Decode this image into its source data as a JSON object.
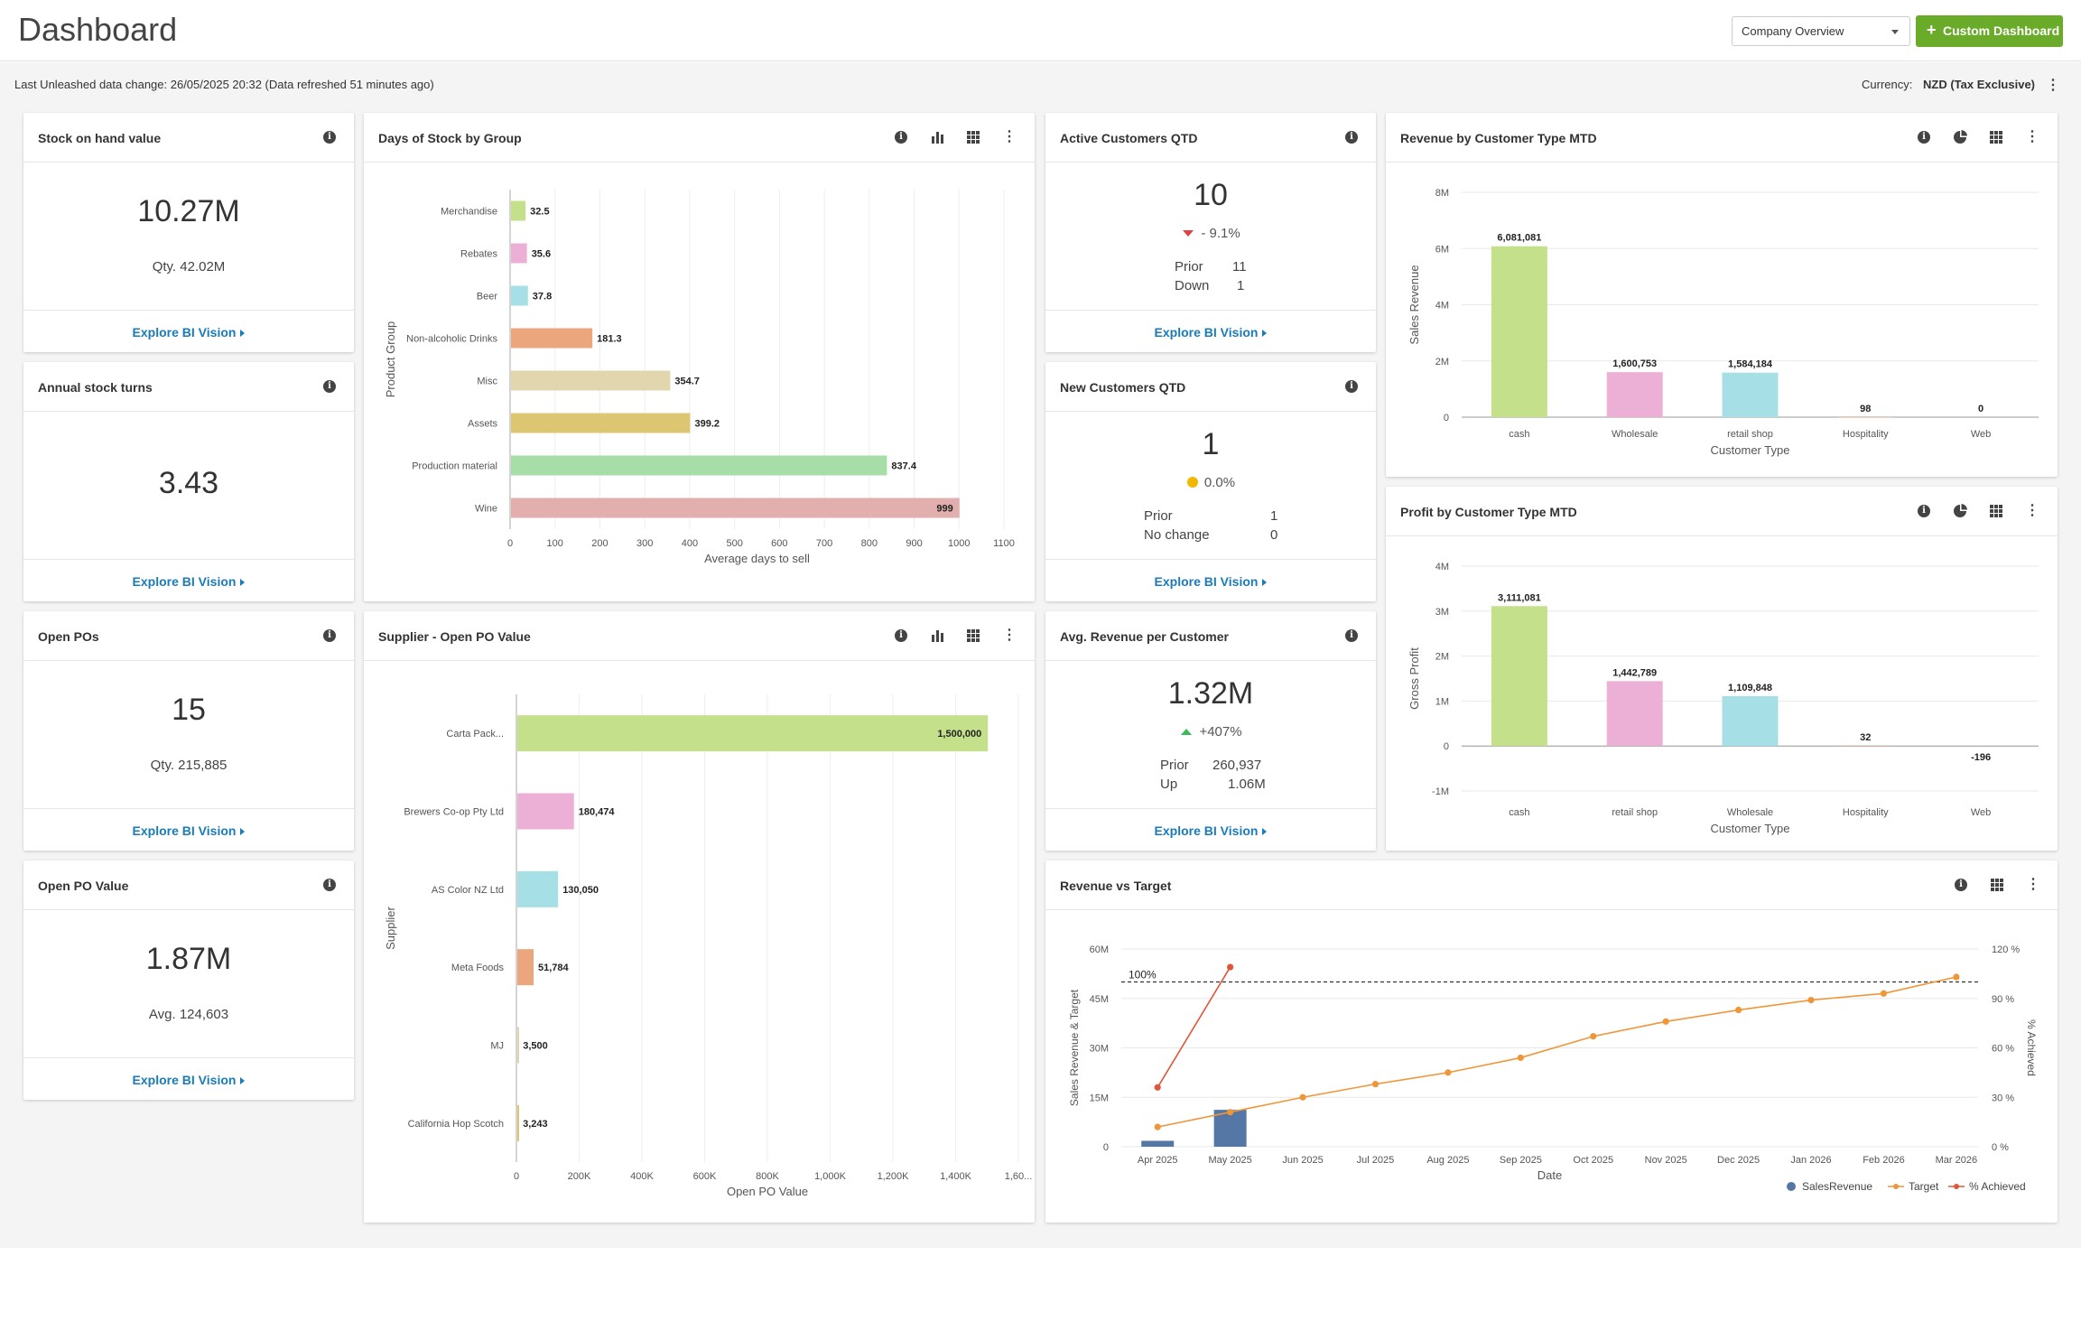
{
  "header": {
    "title": "Dashboard",
    "dashboard_select": "Company Overview",
    "custom_button": "Custom Dashboard",
    "plus": "+"
  },
  "infobar": {
    "last_change": "Last Unleashed data change: 26/05/2025 20:32 (Data refreshed 51 minutes ago)",
    "currency_label": "Currency:",
    "currency_value": "NZD (Tax Exclusive)"
  },
  "explore_label": "Explore BI Vision",
  "cards": {
    "stock_on_hand": {
      "title": "Stock on hand value",
      "value": "10.27M",
      "sub": "Qty. 42.02M"
    },
    "stock_turns": {
      "title": "Annual stock turns",
      "value": "3.43"
    },
    "open_pos": {
      "title": "Open POs",
      "value": "15",
      "sub": "Qty. 215,885"
    },
    "open_po_value": {
      "title": "Open PO Value",
      "value": "1.87M",
      "sub": "Avg. 124,603"
    },
    "active_customers": {
      "title": "Active Customers QTD",
      "value": "10",
      "delta": "- 9.1%",
      "prior_label": "Prior",
      "prior_value": "11",
      "change_label": "Down",
      "change_value": "1"
    },
    "new_customers": {
      "title": "New Customers QTD",
      "value": "1",
      "delta": "0.0%",
      "prior_label": "Prior",
      "prior_value": "1",
      "change_label": "No change",
      "change_value": "0"
    },
    "avg_revenue": {
      "title": "Avg. Revenue per Customer",
      "value": "1.32M",
      "delta": "+407%",
      "prior_label": "Prior",
      "prior_value": "260,937",
      "change_label": "Up",
      "change_value": "1.06M"
    }
  },
  "colors": {
    "green": "#c5e08a",
    "pink": "#ecb0d6",
    "cyan": "#a6dfe6",
    "orange": "#eca67e",
    "tan": "#e1d6ad",
    "gold": "#dcc672",
    "mint": "#a7dea8",
    "rose": "#e3aeae",
    "navy": "#5577a6",
    "target": "#f0963a",
    "achieved": "#e0563a",
    "down": "#e04040",
    "up": "#3cb85a",
    "neutral": "#f0b800"
  },
  "chart_data": [
    {
      "id": "days_of_stock",
      "title": "Days of Stock by Group",
      "type": "bar",
      "orientation": "horizontal",
      "categories": [
        "Merchandise",
        "Rebates",
        "Beer",
        "Non-alcoholic Drinks",
        "Misc",
        "Assets",
        "Production material",
        "Wine"
      ],
      "values": [
        32.5,
        35.6,
        37.8,
        181.3,
        354.7,
        399.2,
        837.4,
        999
      ],
      "labels": [
        "32.5",
        "35.6",
        "37.8",
        "181.3",
        "354.7",
        "399.2",
        "837.4",
        "999"
      ],
      "xlabel": "Average days to sell",
      "ylabel": "Product Group",
      "xlim": [
        0,
        1100
      ],
      "ticks": [
        "0",
        "100",
        "200",
        "300",
        "400",
        "500",
        "600",
        "700",
        "800",
        "900",
        "1000",
        "1100"
      ]
    },
    {
      "id": "supplier_po",
      "title": "Supplier - Open PO Value",
      "type": "bar",
      "orientation": "horizontal",
      "categories": [
        "Carta Pack...",
        "Brewers Co-op Pty Ltd",
        "AS Color NZ Ltd",
        "Meta Foods",
        "MJ",
        "California Hop Scotch"
      ],
      "values": [
        1500000,
        180474,
        130050,
        51784,
        3500,
        3243
      ],
      "labels": [
        "1,500,000",
        "180,474",
        "130,050",
        "51,784",
        "3,500",
        "3,243"
      ],
      "xlabel": "Open PO Value",
      "ylabel": "Supplier",
      "xlim": [
        0,
        1600000
      ],
      "ticks": [
        "0",
        "200K",
        "400K",
        "600K",
        "800K",
        "1,000K",
        "1,200K",
        "1,400K",
        "1,60..."
      ]
    },
    {
      "id": "revenue_by_type",
      "title": "Revenue by Customer Type MTD",
      "type": "bar",
      "categories": [
        "cash",
        "Wholesale",
        "retail shop",
        "Hospitality",
        "Web"
      ],
      "values": [
        6081081,
        1600753,
        1584184,
        98,
        0
      ],
      "labels": [
        "6,081,081",
        "1,600,753",
        "1,584,184",
        "98",
        "0"
      ],
      "xlabel": "Customer Type",
      "ylabel": "Sales Revenue",
      "ylim": [
        0,
        8000000
      ],
      "ticks": [
        "0",
        "2M",
        "4M",
        "6M",
        "8M"
      ]
    },
    {
      "id": "profit_by_type",
      "title": "Profit by Customer Type MTD",
      "type": "bar",
      "categories": [
        "cash",
        "retail shop",
        "Wholesale",
        "Hospitality",
        "Web"
      ],
      "values": [
        3111081,
        1442789,
        1109848,
        32,
        -196
      ],
      "labels": [
        "3,111,081",
        "1,442,789",
        "1,109,848",
        "32",
        "-196"
      ],
      "xlabel": "Customer Type",
      "ylabel": "Gross Profit",
      "ylim": [
        -1000000,
        4000000
      ],
      "ticks": [
        "-1M",
        "0",
        "1M",
        "2M",
        "3M",
        "4M"
      ]
    },
    {
      "id": "revenue_vs_target",
      "title": "Revenue vs Target",
      "type": "bar",
      "x": [
        "Apr 2025",
        "May 2025",
        "Jun 2025",
        "Jul 2025",
        "Aug 2025",
        "Sep 2025",
        "Oct 2025",
        "Nov 2025",
        "Dec 2025",
        "Jan 2026",
        "Feb 2026",
        "Mar 2026"
      ],
      "series": [
        {
          "name": "SalesRevenue",
          "type": "bar",
          "values": [
            1.8,
            11.2,
            null,
            null,
            null,
            null,
            null,
            null,
            null,
            null,
            null,
            null
          ]
        },
        {
          "name": "Target",
          "type": "line",
          "values": [
            6,
            10.5,
            15,
            19,
            22.5,
            27,
            33.5,
            38,
            41.5,
            44.5,
            46.5,
            51.5
          ]
        },
        {
          "name": "% Achieved",
          "type": "line",
          "axis": "right",
          "values": [
            36,
            109,
            null,
            null,
            null,
            null,
            null,
            null,
            null,
            null,
            null,
            null
          ]
        }
      ],
      "reference_line": {
        "value": 100,
        "label": "100%"
      },
      "xlabel": "Date",
      "ylabel": "Sales Revenue & Target",
      "y2label": "% Achieved",
      "ylim": [
        0,
        60
      ],
      "y2lim": [
        0,
        120
      ],
      "yticks": [
        "0",
        "15M",
        "30M",
        "45M",
        "60M"
      ],
      "y2ticks": [
        "0 %",
        "30 %",
        "60 %",
        "90 %",
        "120 %"
      ],
      "legend_position": "bottom-right"
    }
  ]
}
